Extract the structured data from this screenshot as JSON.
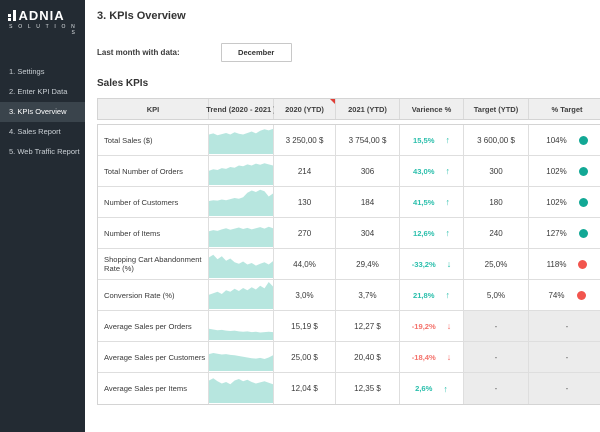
{
  "sidebar": {
    "logo_text": "ADNIA",
    "logo_sub": "S O L U T I O N S",
    "items": [
      {
        "label": "1. Settings",
        "active": false
      },
      {
        "label": "2. Enter KPI Data",
        "active": false
      },
      {
        "label": "3. KPIs Overview",
        "active": true
      },
      {
        "label": "4. Sales Report",
        "active": false
      },
      {
        "label": "5. Web Traffic Report",
        "active": false
      }
    ]
  },
  "header": {
    "title": "3. KPIs Overview",
    "last_month_label": "Last month with data:",
    "last_month_value": "December",
    "section_title": "Sales KPIs"
  },
  "colors": {
    "teal_text": "#2bbfac",
    "red_text": "#f4726b",
    "teal_dot": "#12a895",
    "red_dot": "#f2554e",
    "spark_fill": "#b7e6df"
  },
  "table": {
    "columns": [
      "KPI",
      "Trend (2020 - 2021 )",
      "2020 (YTD)",
      "2021 (YTD)",
      "Varience %",
      "Target (YTD)",
      "% Target"
    ],
    "comment_flag_column": "2020 (YTD)",
    "rows": [
      {
        "kpi": "Total Sales ($)",
        "y2020": "3 250,00 $",
        "y2021": "3 754,00 $",
        "variance": "15,5%",
        "variance_color": "teal",
        "arrow": "up",
        "target": "3 600,00 $",
        "pct_target": "104%",
        "dot": "teal",
        "muted": false,
        "trend": [
          0.52,
          0.55,
          0.5,
          0.53,
          0.56,
          0.52,
          0.58,
          0.54,
          0.52,
          0.56,
          0.6,
          0.55,
          0.62,
          0.66,
          0.63,
          0.67
        ]
      },
      {
        "kpi": "Total Number of Orders",
        "y2020": "214",
        "y2021": "306",
        "variance": "43,0%",
        "variance_color": "teal",
        "arrow": "up",
        "target": "300",
        "pct_target": "102%",
        "dot": "teal",
        "muted": false,
        "trend": [
          0.38,
          0.42,
          0.4,
          0.45,
          0.43,
          0.48,
          0.46,
          0.52,
          0.5,
          0.55,
          0.52,
          0.57,
          0.54,
          0.58,
          0.55,
          0.52
        ]
      },
      {
        "kpi": "Number of Customers",
        "y2020": "130",
        "y2021": "184",
        "variance": "41,5%",
        "variance_color": "teal",
        "arrow": "up",
        "target": "180",
        "pct_target": "102%",
        "dot": "teal",
        "muted": false,
        "trend": [
          0.4,
          0.42,
          0.41,
          0.44,
          0.42,
          0.45,
          0.48,
          0.46,
          0.5,
          0.62,
          0.68,
          0.64,
          0.7,
          0.66,
          0.52,
          0.6
        ]
      },
      {
        "kpi": "Number of Items",
        "y2020": "270",
        "y2021": "304",
        "variance": "12,6%",
        "variance_color": "teal",
        "arrow": "up",
        "target": "240",
        "pct_target": "127%",
        "dot": "teal",
        "muted": false,
        "trend": [
          0.42,
          0.45,
          0.43,
          0.47,
          0.5,
          0.46,
          0.49,
          0.52,
          0.48,
          0.51,
          0.47,
          0.5,
          0.53,
          0.49,
          0.54,
          0.5
        ]
      },
      {
        "kpi": "Shopping Cart Abandonment Rate (%)",
        "y2020": "44,0%",
        "y2021": "29,4%",
        "variance": "-33,2%",
        "variance_color": "teal",
        "arrow": "down",
        "target": "25,0%",
        "pct_target": "118%",
        "dot": "red",
        "muted": false,
        "trend": [
          0.55,
          0.62,
          0.5,
          0.58,
          0.46,
          0.52,
          0.42,
          0.38,
          0.44,
          0.36,
          0.4,
          0.33,
          0.38,
          0.42,
          0.36,
          0.45
        ]
      },
      {
        "kpi": "Conversion Rate (%)",
        "y2020": "3,0%",
        "y2021": "3,7%",
        "variance": "21,8%",
        "variance_color": "teal",
        "arrow": "up",
        "target": "5,0%",
        "pct_target": "74%",
        "dot": "red",
        "muted": false,
        "trend": [
          0.38,
          0.42,
          0.46,
          0.4,
          0.5,
          0.46,
          0.54,
          0.48,
          0.56,
          0.5,
          0.58,
          0.52,
          0.62,
          0.55,
          0.72,
          0.6
        ]
      },
      {
        "kpi": "Average Sales per Orders",
        "y2020": "15,19 $",
        "y2021": "12,27 $",
        "variance": "-19,2%",
        "variance_color": "red",
        "arrow": "down",
        "target": "-",
        "pct_target": "-",
        "dot": null,
        "muted": true,
        "trend": [
          0.3,
          0.28,
          0.26,
          0.27,
          0.25,
          0.24,
          0.25,
          0.23,
          0.22,
          0.23,
          0.21,
          0.22,
          0.2,
          0.21,
          0.22,
          0.21
        ]
      },
      {
        "kpi": "Average Sales per Customers",
        "y2020": "25,00 $",
        "y2021": "20,40 $",
        "variance": "-18,4%",
        "variance_color": "red",
        "arrow": "down",
        "target": "-",
        "pct_target": "-",
        "dot": null,
        "muted": true,
        "trend": [
          0.45,
          0.48,
          0.46,
          0.44,
          0.45,
          0.43,
          0.42,
          0.4,
          0.38,
          0.36,
          0.34,
          0.33,
          0.35,
          0.32,
          0.36,
          0.42
        ]
      },
      {
        "kpi": "Average Sales per Items",
        "y2020": "12,04 $",
        "y2021": "12,35 $",
        "variance": "2,6%",
        "variance_color": "teal",
        "arrow": "up",
        "target": "-",
        "pct_target": "-",
        "dot": null,
        "muted": true,
        "trend": [
          0.6,
          0.66,
          0.58,
          0.52,
          0.56,
          0.5,
          0.6,
          0.64,
          0.58,
          0.62,
          0.56,
          0.52,
          0.55,
          0.58,
          0.54,
          0.5
        ]
      }
    ]
  }
}
